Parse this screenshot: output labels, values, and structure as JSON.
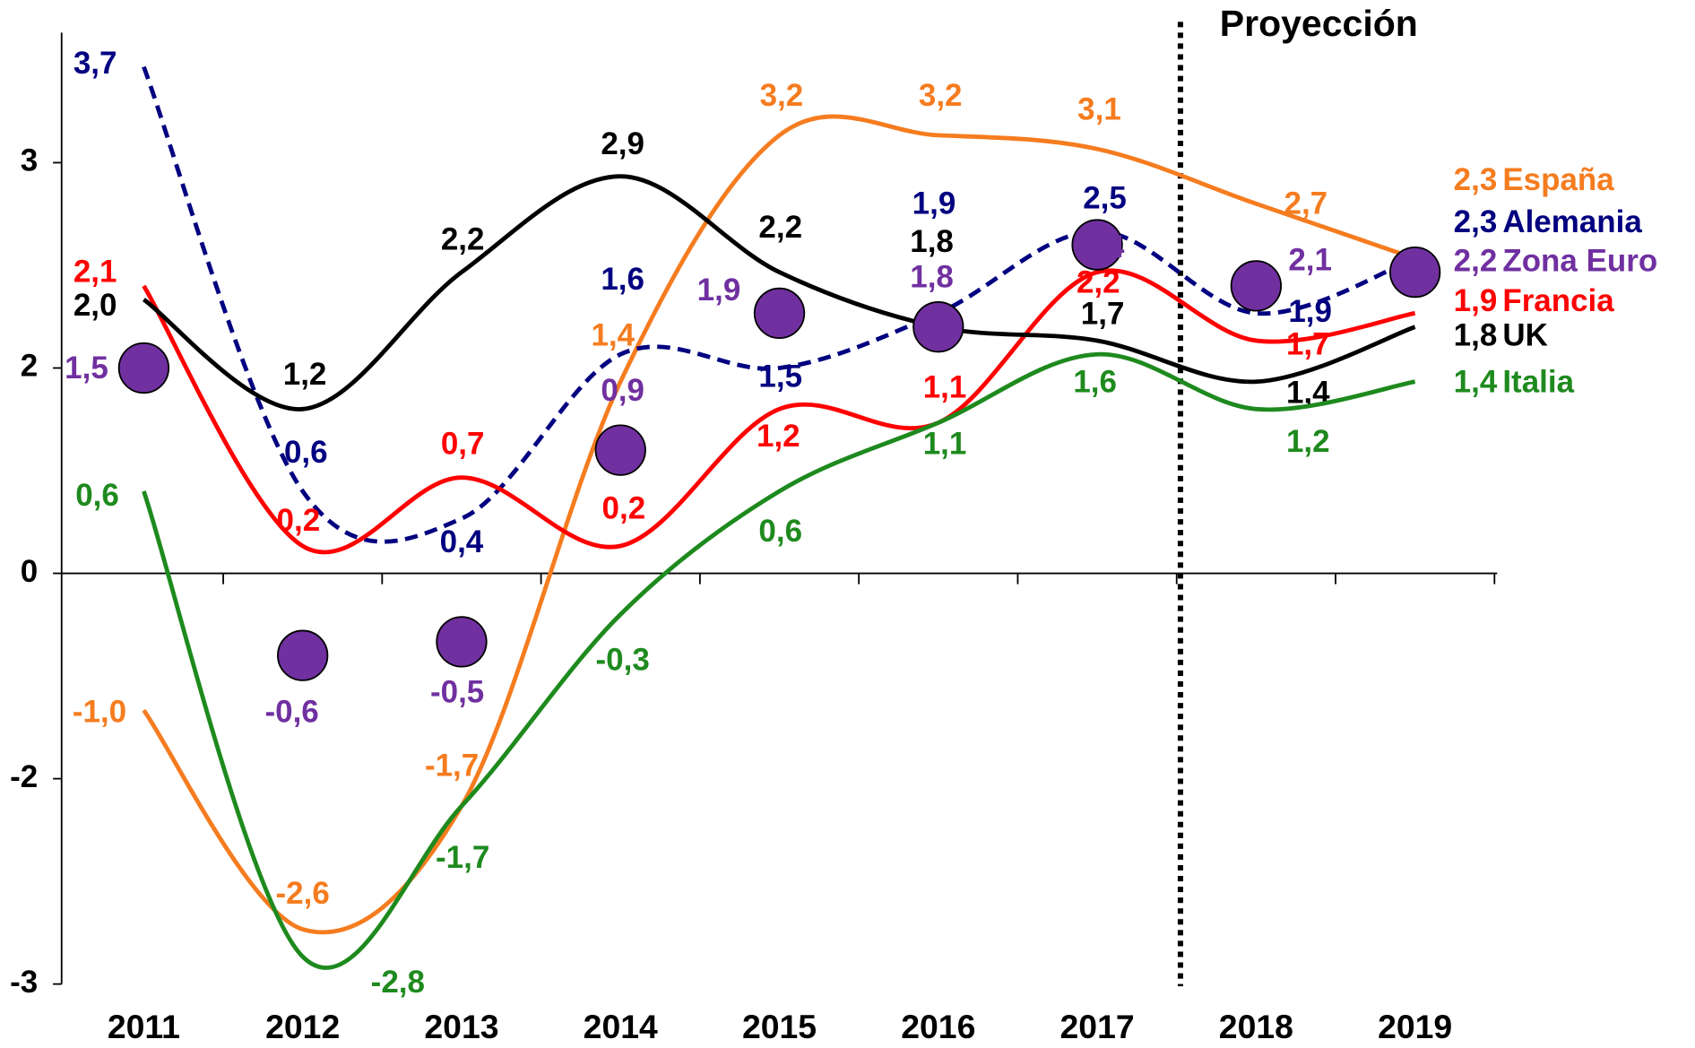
{
  "chart_data": {
    "type": "line",
    "annotation": "Proyección",
    "categories": [
      "2011",
      "2012",
      "2013",
      "2014",
      "2015",
      "2016",
      "2017",
      "2018",
      "2019"
    ],
    "ylim": [
      -3,
      3.95
    ],
    "yticks": [
      -3,
      {
        "value": -1.5,
        "label": "-2"
      },
      0,
      {
        "value": 1.5,
        "label": "2"
      },
      3
    ],
    "series": [
      {
        "name": "España",
        "color": "#f57c1f",
        "values": [
          -1.0,
          -2.6,
          -1.7,
          1.4,
          3.2,
          3.2,
          3.1,
          2.7,
          2.3
        ],
        "value_labels": [
          "-1,0",
          "-2,6",
          "-1,7",
          "1,4",
          "3,2",
          "3,2",
          "3,1",
          "2,7",
          "2,3"
        ]
      },
      {
        "name": "Alemania",
        "color": "#000080",
        "dashed": true,
        "values": [
          3.7,
          0.6,
          0.4,
          1.6,
          1.5,
          1.9,
          2.5,
          1.9,
          2.3
        ],
        "value_labels": [
          "3,7",
          "0,6",
          "0,4",
          "1,6",
          "1,5",
          "1,9",
          "2,5",
          "1,9",
          "2,3"
        ]
      },
      {
        "name": "Zona Euro",
        "color": "#7030a0",
        "markers": true,
        "values": [
          1.5,
          -0.6,
          -0.5,
          0.9,
          1.9,
          1.8,
          2.4,
          2.1,
          2.2
        ],
        "value_labels": [
          "1,5",
          "-0,6",
          "-0,5",
          "0,9",
          "1,9",
          "1,8",
          "2,4",
          "2,1",
          "2,2"
        ]
      },
      {
        "name": "Francia",
        "color": "#ff0000",
        "values": [
          2.1,
          0.2,
          0.7,
          0.2,
          1.2,
          1.1,
          2.2,
          1.7,
          1.9
        ],
        "value_labels": [
          "2,1",
          "0,2",
          "0,7",
          "0,2",
          "1,2",
          "1,1",
          "2,2",
          "1,7",
          "1,9"
        ]
      },
      {
        "name": "UK",
        "color": "#000000",
        "values": [
          2.0,
          1.2,
          2.2,
          2.9,
          2.2,
          1.8,
          1.7,
          1.4,
          1.8
        ],
        "value_labels": [
          "2,0",
          "1,2",
          "2,2",
          "2,9",
          "2,2",
          "1,8",
          "1,7",
          "1,4",
          "1,8"
        ]
      },
      {
        "name": "Italia",
        "color": "#1e8a1e",
        "values": [
          0.6,
          -2.8,
          -1.7,
          -0.3,
          0.6,
          1.1,
          1.6,
          1.2,
          1.4
        ],
        "value_labels": [
          "0,6",
          "-2,8",
          "-1,7",
          "-0,3",
          "0,6",
          "1,1",
          "1,6",
          "1,2",
          "1,4"
        ]
      }
    ]
  }
}
